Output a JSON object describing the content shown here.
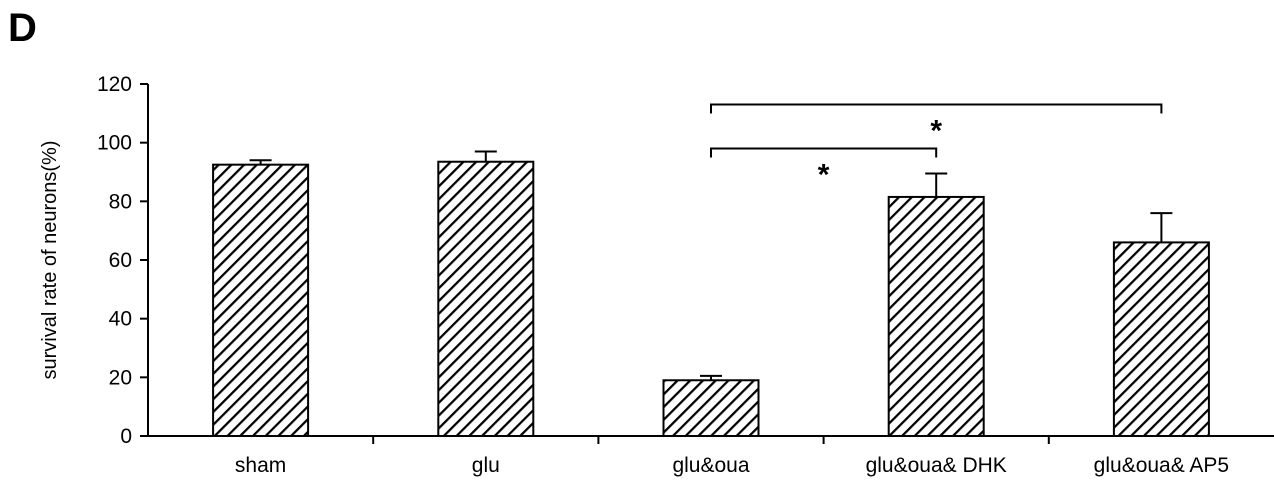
{
  "panel_label": "D",
  "chart_data": {
    "type": "bar",
    "title": "",
    "xlabel": "",
    "ylabel": "survival rate of neurons(%)",
    "ylim": [
      0,
      120
    ],
    "yticks": [
      0,
      20,
      40,
      60,
      80,
      100,
      120
    ],
    "grid": false,
    "categories": [
      "sham",
      "glu",
      "glu&oua",
      "glu&oua& DHK",
      "glu&oua& AP5"
    ],
    "values": [
      92.5,
      93.5,
      19,
      81.5,
      66
    ],
    "errors": [
      1.5,
      3.5,
      1.5,
      8,
      10
    ],
    "bar_pattern": "diagonal-hatch",
    "significance": [
      {
        "from": "glu&oua",
        "to": "glu&oua& DHK",
        "level": 98,
        "label": "*"
      },
      {
        "from": "glu&oua",
        "to": "glu&oua& AP5",
        "level": 113,
        "label": "*"
      }
    ]
  }
}
